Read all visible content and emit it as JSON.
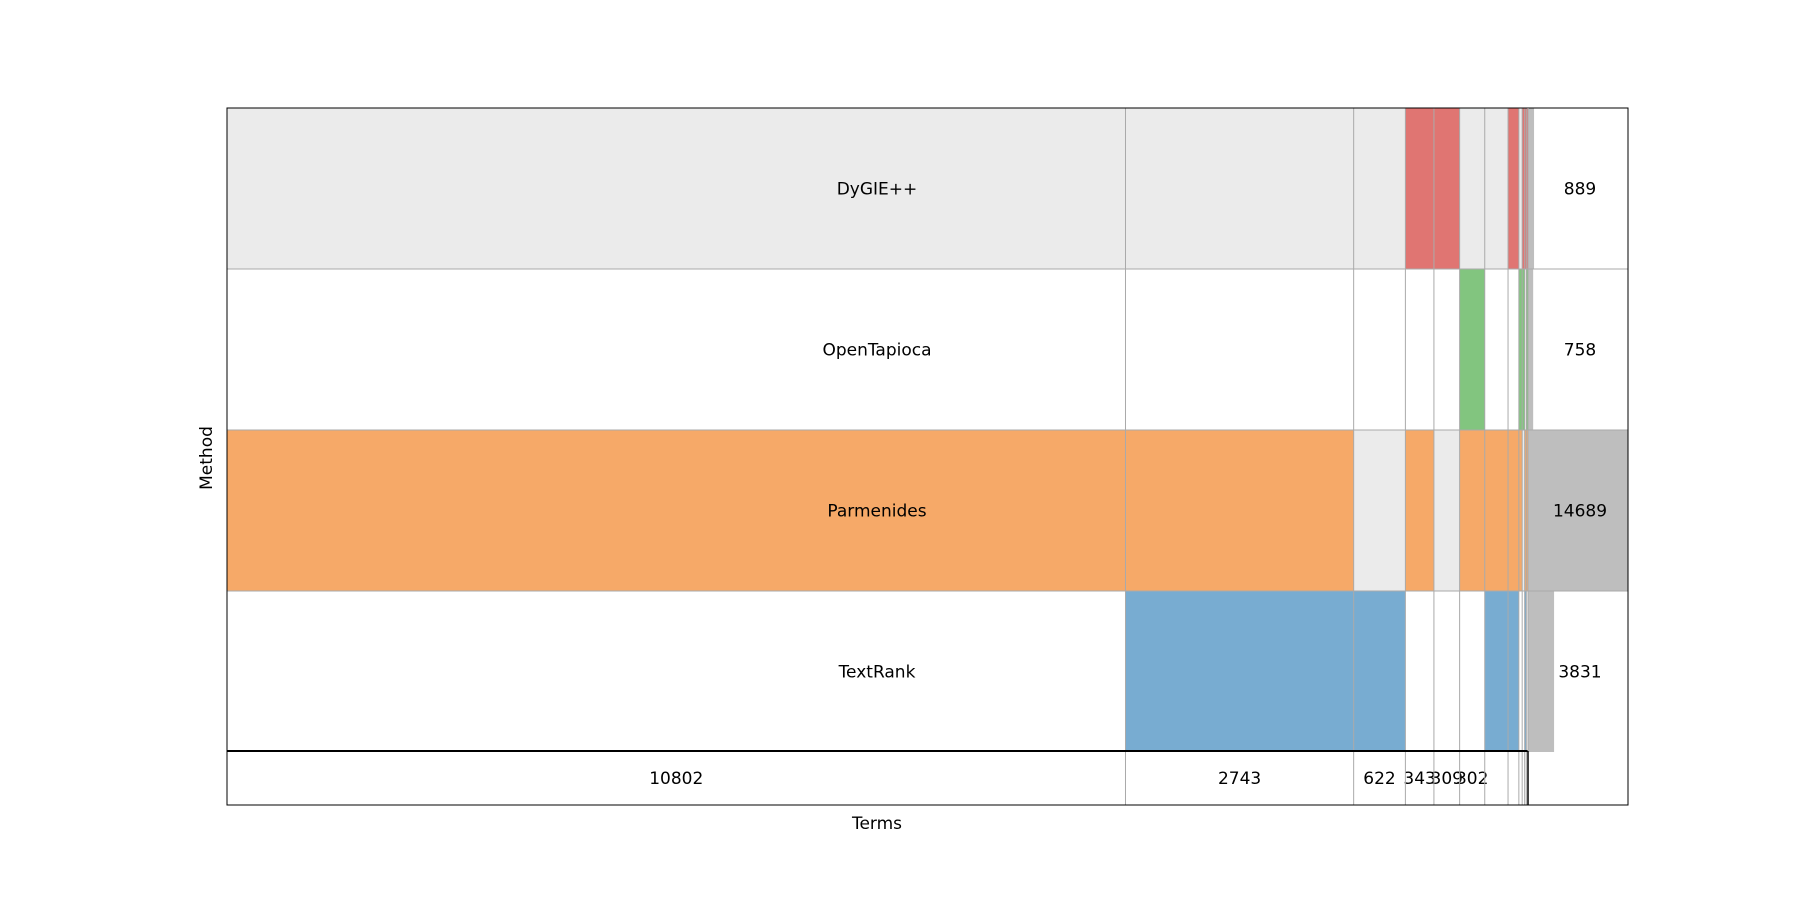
{
  "chart_data": {
    "type": "upset-matrix",
    "xlabel": "Terms",
    "ylabel": "Method",
    "methods": [
      "DyGIE++",
      "OpenTapioca",
      "Parmenides",
      "TextRank"
    ],
    "method_colors": [
      "#e07572",
      "#82c57f",
      "#f6a968",
      "#78acd1"
    ],
    "empty_fill": "#ebebeb",
    "totals_fill": "#bebebe",
    "method_totals": [
      889,
      758,
      14689,
      3831
    ],
    "columns": [
      {
        "count": 10802,
        "label": "10802",
        "members": [
          "Parmenides"
        ]
      },
      {
        "count": 2743,
        "label": "2743",
        "members": [
          "Parmenides",
          "TextRank"
        ]
      },
      {
        "count": 622,
        "label": "622",
        "members": [
          "TextRank"
        ]
      },
      {
        "count": 343,
        "label": "343",
        "members": [
          "DyGIE++",
          "Parmenides"
        ]
      },
      {
        "count": 309,
        "label": "309",
        "members": [
          "DyGIE++"
        ]
      },
      {
        "count": 302,
        "label": "302",
        "members": [
          "OpenTapioca",
          "Parmenides"
        ]
      },
      {
        "count": 280,
        "label": "",
        "members": [
          "Parmenides",
          "TextRank"
        ]
      },
      {
        "count": 130,
        "label": "",
        "members": [
          "DyGIE++",
          "Parmenides",
          "TextRank"
        ]
      },
      {
        "count": 40,
        "label": "",
        "members": [
          "OpenTapioca",
          "Parmenides"
        ]
      },
      {
        "count": 30,
        "label": "",
        "members": [
          "DyGIE++",
          "OpenTapioca"
        ]
      },
      {
        "count": 20,
        "label": "",
        "members": [
          "DyGIE++",
          "Parmenides",
          "TextRank"
        ]
      },
      {
        "count": 20,
        "label": "",
        "members": [
          "DyGIE++",
          "OpenTapioca",
          "Parmenides"
        ]
      }
    ]
  }
}
